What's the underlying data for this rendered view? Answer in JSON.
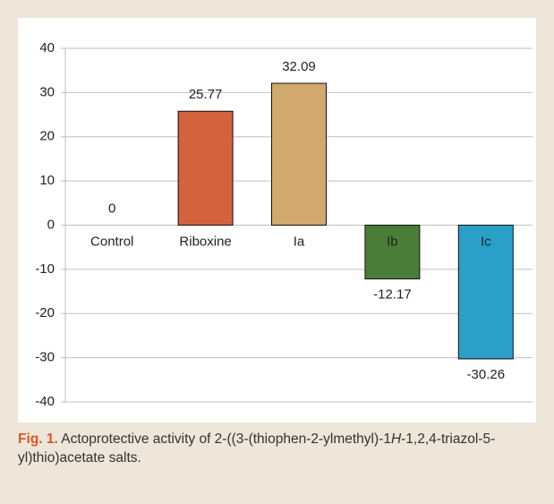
{
  "chart_data": {
    "type": "bar",
    "categories": [
      "Control",
      "Riboxine",
      "Ia",
      "Ib",
      "Ic"
    ],
    "values": [
      0,
      25.77,
      32.09,
      -12.17,
      -30.26
    ],
    "colors": [
      "#d4623c",
      "#d4623c",
      "#d1a86e",
      "#4a7d38",
      "#2aa0c8"
    ],
    "ylim": [
      -40,
      40
    ],
    "yticks": [
      -40,
      -30,
      -20,
      -10,
      0,
      10,
      20,
      30,
      40
    ],
    "grid": true
  },
  "caption": {
    "label": "Fig. 1.",
    "text": [
      "Actoprotective activity of 2-((3-(thiophen-2-ylmethyl)-1",
      "H",
      "-1,2,4-triazol-5-yl)thio)acetate salts."
    ]
  }
}
